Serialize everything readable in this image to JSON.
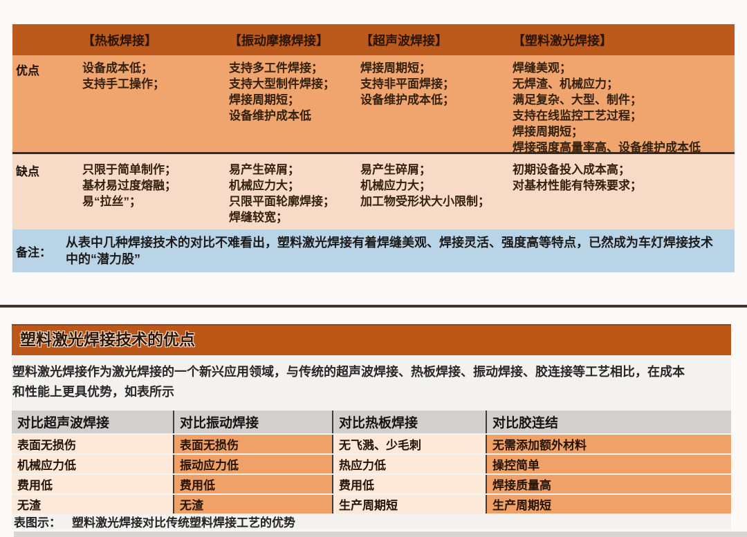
{
  "colors": {
    "header_orange": "#bc5a1d",
    "advantages_row_peach": "#f0a46e",
    "disadvantages_row_light": "#f8dbc6",
    "note_row_blue": "#bad4e7",
    "section_title_orange": "#bc5717",
    "table2_header_gray": "#d2cfcc",
    "table2_light_cell": "#fce9d9",
    "table2_orange_cell": "#efa168"
  },
  "table1": {
    "row_labels": {
      "advantages": "优点",
      "disadvantages": "缺点",
      "notes": "备注："
    },
    "columns": [
      {
        "header": "【热板焊接】",
        "advantages": [
          "设备成本低；",
          "支持手工操作；"
        ],
        "disadvantages": [
          "只限于简单制作；",
          "基材易过度熔融；",
          "易“拉丝”；"
        ]
      },
      {
        "header": "【振动摩擦焊接】",
        "advantages": [
          "支持多工件焊接；",
          "支持大型制件焊接；",
          "焊接周期短；",
          "设备维护成本低"
        ],
        "disadvantages": [
          "易产生碎屑；",
          "机械应力大；",
          "只限平面轮廓焊接；",
          "焊缝较宽；"
        ]
      },
      {
        "header": "【超声波焊接】",
        "advantages": [
          "焊接周期短；",
          "支持非平面焊接；",
          "设备维护成本低；"
        ],
        "disadvantages": [
          "易产生碎屑；",
          "机械应力大；",
          "加工物受形状大小限制；"
        ]
      },
      {
        "header": "【塑料激光焊接】",
        "advantages": [
          "焊缝美观；",
          "无焊渣、机械应力；",
          "满足复杂、大型、制件；",
          "支持在线监控工艺过程；",
          "焊接周期短；",
          "焊接强度高量率高、设备维护成本低"
        ],
        "disadvantages": [
          "初期设备投入成本高；",
          "对基材性能有特殊要求；"
        ]
      }
    ],
    "note": "从表中几种焊接技术的对比不难看出，塑料激光焊接有着焊缝美观、焊接灵活、强度高等特点，已然成为车灯焊接技术中的“潜力股”"
  },
  "section2": {
    "title": "塑料激光焊接技术的优点",
    "intro": "塑料激光焊接作为激光焊接的一个新兴应用领域，与传统的超声波焊接、热板焊接、振动焊接、胶连接等工艺相比，在成本和性能上更具优势，如表所示",
    "table": {
      "headers": [
        "对比超声波焊接",
        "对比振动焊接",
        "对比热板焊接",
        "对比胶连结"
      ],
      "rows": [
        [
          "表面无损伤",
          "表面无损伤",
          "无飞溅、少毛刺",
          "无需添加额外材料"
        ],
        [
          "机械应力低",
          "振动应力低",
          "热应力低",
          "操控简单"
        ],
        [
          "费用低",
          "费用低",
          "费用低",
          "焊接质量高"
        ],
        [
          "无渣",
          "无渣",
          "生产周期短",
          "生产周期短"
        ]
      ]
    },
    "caption_label": "表图示：",
    "caption_text": "塑料激光焊接对比传统塑料焊接工艺的优势"
  }
}
